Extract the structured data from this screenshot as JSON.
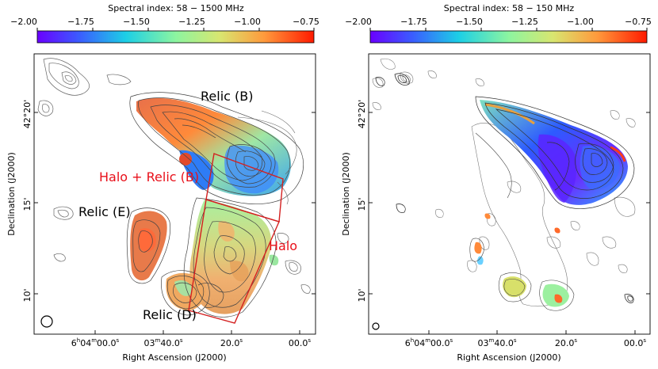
{
  "left": {
    "colorbar": {
      "title": "Spectral index: 58 − 1500 MHz",
      "ticks": [
        "−2.00",
        "−1.75",
        "−1.50",
        "−1.25",
        "−1.00",
        "−0.75"
      ]
    },
    "y_ticks": [
      "42°20'",
      "15'",
      "10'"
    ],
    "x_ticks": [
      "6ʰ04ᵐ¹00.0ˢ",
      "03ᵐ¹40.0ˢ",
      "20.0ˢ",
      "00.0ˢ"
    ],
    "x_tick_parts": [
      {
        "h": "6",
        "hs": "h",
        "m": "04",
        "ms": "m",
        "s": "00.0",
        "ss": "s"
      },
      {
        "m": "03",
        "ms": "m",
        "s": "40.0",
        "ss": "s"
      },
      {
        "s": "20.0",
        "ss": "s"
      },
      {
        "s": "00.0",
        "ss": "s"
      }
    ],
    "xlabel": "Right Ascension (J2000)",
    "ylabel": "Declination (J2000)",
    "annotations": {
      "relic_b": "Relic (B)",
      "halo_relic_b": "Halo + Relic (B)",
      "relic_e": "Relic (E)",
      "halo": "Halo",
      "relic_d": "Relic (D)"
    }
  },
  "right": {
    "colorbar": {
      "title": "Spectral index: 58 − 150 MHz",
      "ticks": [
        "−2.00",
        "−1.75",
        "−1.50",
        "−1.25",
        "−1.00",
        "−0.75"
      ]
    },
    "y_ticks": [
      "42°20'",
      "15'",
      "10'"
    ],
    "x_tick_parts": [
      {
        "h": "6",
        "hs": "h",
        "m": "04",
        "ms": "m",
        "s": "00.0",
        "ss": "s"
      },
      {
        "m": "03",
        "ms": "m",
        "s": "40.0",
        "ss": "s"
      },
      {
        "s": "20.0",
        "ss": "s"
      },
      {
        "s": "00.0",
        "ss": "s"
      }
    ],
    "xlabel": "Right Ascension (J2000)",
    "ylabel": "Declination (J2000)"
  },
  "colors": {
    "annotation_red": "#e8101a",
    "region_red": "#d42020",
    "contour": "#555555"
  }
}
